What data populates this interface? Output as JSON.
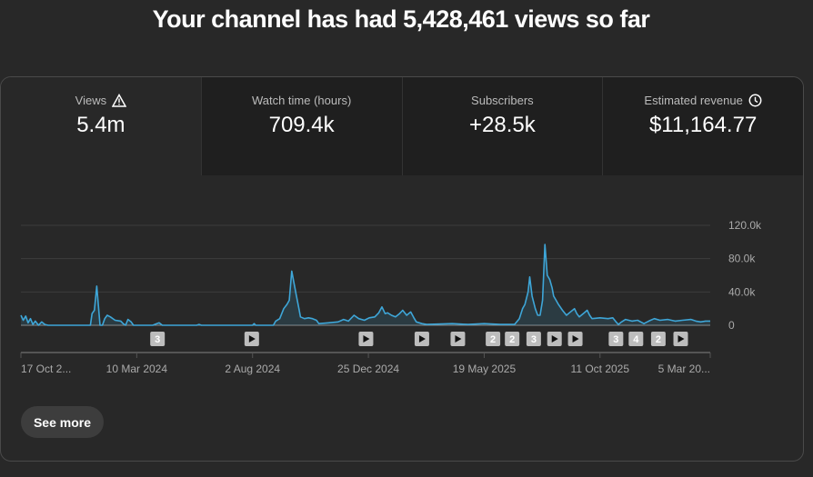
{
  "header": {
    "title": "Your channel has had 5,428,461 views so far"
  },
  "metrics": [
    {
      "label": "Views",
      "value": "5.4m",
      "icon": "warning-icon"
    },
    {
      "label": "Watch time (hours)",
      "value": "709.4k"
    },
    {
      "label": "Subscribers",
      "value": "+28.5k"
    },
    {
      "label": "Estimated revenue",
      "value": "$11,164.77",
      "icon": "clock-icon"
    }
  ],
  "chart_data": {
    "type": "area",
    "series": [
      {
        "name": "Views",
        "color": "#3ea6d8",
        "points": [
          [
            0,
            12
          ],
          [
            3,
            6
          ],
          [
            6,
            11
          ],
          [
            9,
            3
          ],
          [
            12,
            8
          ],
          [
            15,
            1
          ],
          [
            18,
            5
          ],
          [
            22,
            0
          ],
          [
            26,
            4
          ],
          [
            30,
            1
          ],
          [
            34,
            0
          ],
          [
            87,
            0
          ],
          [
            89,
            14
          ],
          [
            92,
            18
          ],
          [
            95,
            47
          ],
          [
            99,
            0
          ],
          [
            102,
            0
          ],
          [
            105,
            8
          ],
          [
            108,
            12
          ],
          [
            112,
            10
          ],
          [
            118,
            6
          ],
          [
            125,
            5
          ],
          [
            128,
            2
          ],
          [
            131,
            0
          ],
          [
            134,
            7
          ],
          [
            138,
            4
          ],
          [
            141,
            0
          ],
          [
            165,
            0
          ],
          [
            170,
            2
          ],
          [
            173,
            3
          ],
          [
            177,
            0
          ],
          [
            220,
            0
          ],
          [
            223,
            1
          ],
          [
            226,
            0
          ],
          [
            290,
            0
          ],
          [
            292,
            2
          ],
          [
            294,
            0
          ],
          [
            316,
            0
          ],
          [
            319,
            5
          ],
          [
            324,
            8
          ],
          [
            329,
            20
          ],
          [
            333,
            25
          ],
          [
            336,
            30
          ],
          [
            339,
            65
          ],
          [
            342,
            50
          ],
          [
            345,
            35
          ],
          [
            348,
            20
          ],
          [
            350,
            10
          ],
          [
            355,
            8
          ],
          [
            360,
            9
          ],
          [
            365,
            8
          ],
          [
            370,
            6
          ],
          [
            373,
            2
          ],
          [
            385,
            3
          ],
          [
            397,
            4
          ],
          [
            404,
            7
          ],
          [
            410,
            5
          ],
          [
            417,
            12
          ],
          [
            423,
            8
          ],
          [
            430,
            6
          ],
          [
            436,
            9
          ],
          [
            443,
            10
          ],
          [
            448,
            15
          ],
          [
            452,
            22
          ],
          [
            456,
            14
          ],
          [
            459,
            15
          ],
          [
            464,
            12
          ],
          [
            469,
            10
          ],
          [
            474,
            14
          ],
          [
            478,
            18
          ],
          [
            483,
            12
          ],
          [
            488,
            16
          ],
          [
            492,
            9
          ],
          [
            495,
            4
          ],
          [
            502,
            2
          ],
          [
            508,
            1
          ],
          [
            540,
            2
          ],
          [
            560,
            1
          ],
          [
            580,
            2
          ],
          [
            600,
            1
          ],
          [
            612,
            1
          ],
          [
            618,
            1
          ],
          [
            624,
            8
          ],
          [
            628,
            20
          ],
          [
            631,
            25
          ],
          [
            635,
            40
          ],
          [
            637,
            58
          ],
          [
            640,
            35
          ],
          [
            644,
            20
          ],
          [
            647,
            12
          ],
          [
            650,
            12
          ],
          [
            653,
            30
          ],
          [
            656,
            97
          ],
          [
            659,
            60
          ],
          [
            662,
            55
          ],
          [
            665,
            45
          ],
          [
            667,
            35
          ],
          [
            670,
            30
          ],
          [
            673,
            25
          ],
          [
            678,
            18
          ],
          [
            683,
            12
          ],
          [
            688,
            16
          ],
          [
            693,
            20
          ],
          [
            696,
            14
          ],
          [
            699,
            10
          ],
          [
            704,
            14
          ],
          [
            709,
            18
          ],
          [
            712,
            12
          ],
          [
            715,
            8
          ],
          [
            725,
            9
          ],
          [
            735,
            8
          ],
          [
            741,
            9
          ],
          [
            745,
            4
          ],
          [
            748,
            1
          ],
          [
            752,
            4
          ],
          [
            757,
            7
          ],
          [
            765,
            5
          ],
          [
            772,
            6
          ],
          [
            780,
            2
          ],
          [
            786,
            5
          ],
          [
            793,
            8
          ],
          [
            800,
            6
          ],
          [
            810,
            7
          ],
          [
            819,
            5
          ],
          [
            828,
            6
          ],
          [
            839,
            7
          ],
          [
            845,
            5
          ],
          [
            851,
            4
          ],
          [
            857,
            5
          ],
          [
            863,
            5
          ]
        ]
      }
    ],
    "x_unit": "days since 17 Oct 2023",
    "xlim": [
      0,
      863
    ],
    "ylim": [
      0,
      120
    ],
    "y_unit": "thousand views",
    "y_ticks": [
      {
        "value": 120,
        "label": "120.0k"
      },
      {
        "value": 80,
        "label": "80.0k"
      },
      {
        "value": 40,
        "label": "40.0k"
      },
      {
        "value": 0,
        "label": "0"
      }
    ],
    "x_ticks": [
      {
        "value": 0,
        "label": "17 Oct 2..."
      },
      {
        "value": 145,
        "label": "10 Mar 2024"
      },
      {
        "value": 290,
        "label": "2 Aug 2024"
      },
      {
        "value": 435,
        "label": "25 Dec 2024"
      },
      {
        "value": 580,
        "label": "19 May 2025"
      },
      {
        "value": 725,
        "label": "11 Oct 2025"
      },
      {
        "value": 863,
        "label": "5 Mar 20..."
      }
    ],
    "markers": [
      {
        "x": 171,
        "label": "3"
      },
      {
        "x": 289,
        "label": "play"
      },
      {
        "x": 432,
        "label": "play"
      },
      {
        "x": 502,
        "label": "play"
      },
      {
        "x": 547,
        "label": "play"
      },
      {
        "x": 591,
        "label": "2"
      },
      {
        "x": 615,
        "label": "2"
      },
      {
        "x": 642,
        "label": "3"
      },
      {
        "x": 668,
        "label": "play"
      },
      {
        "x": 694,
        "label": "play"
      },
      {
        "x": 745,
        "label": "3"
      },
      {
        "x": 770,
        "label": "4"
      },
      {
        "x": 798,
        "label": "2"
      },
      {
        "x": 826,
        "label": "play"
      }
    ],
    "grid": true
  },
  "footer": {
    "see_more": "See more"
  }
}
